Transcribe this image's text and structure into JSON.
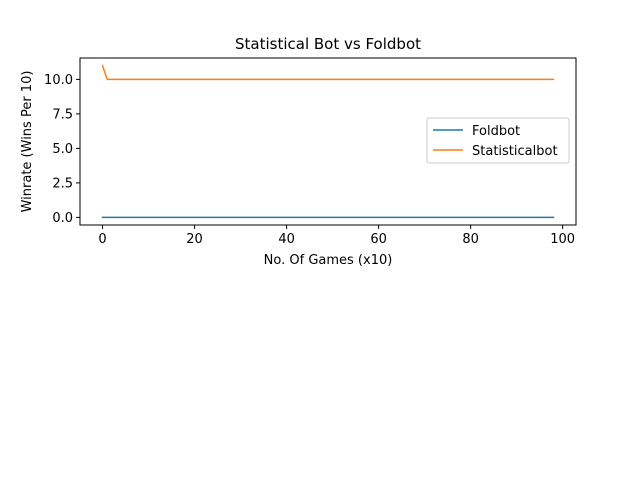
{
  "chart_data": {
    "type": "line",
    "title": "Statistical Bot vs Foldbot",
    "xlabel": "No. Of Games (x10)",
    "ylabel": "Winrate (Wins Per 10)",
    "xlim": [
      -4.9,
      102.9
    ],
    "ylim": [
      -0.55,
      11.55
    ],
    "xticks": [
      0,
      20,
      40,
      60,
      80,
      100
    ],
    "yticks": [
      0.0,
      2.5,
      5.0,
      7.5,
      10.0
    ],
    "xtick_labels": [
      "0",
      "20",
      "40",
      "60",
      "80",
      "100"
    ],
    "ytick_labels": [
      "0.0",
      "2.5",
      "5.0",
      "7.5",
      "10.0"
    ],
    "grid": false,
    "legend_position": "center-right",
    "series": [
      {
        "name": "Foldbot",
        "color": "#1f77b4",
        "x": [
          0,
          98
        ],
        "y": [
          0,
          0
        ]
      },
      {
        "name": "Statisticalbot",
        "color": "#ff7f0e",
        "x": [
          0,
          1,
          98
        ],
        "y": [
          11,
          10,
          10
        ]
      }
    ]
  }
}
